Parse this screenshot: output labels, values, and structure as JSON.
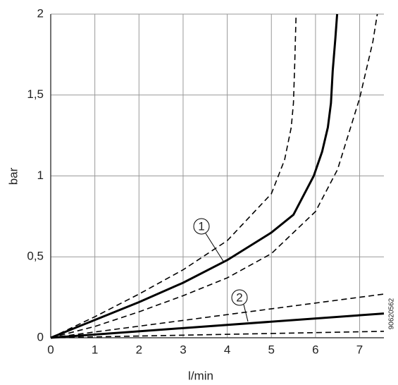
{
  "chart_data": {
    "type": "line",
    "xlabel": "l/min",
    "ylabel": "bar",
    "xlim": [
      0,
      7.55
    ],
    "ylim": [
      0,
      2
    ],
    "xticks": [
      0,
      1,
      2,
      3,
      4,
      5,
      6,
      7
    ],
    "yticks": [
      0,
      {
        "value": 0.5,
        "label": "0,5"
      },
      1,
      {
        "value": 1.5,
        "label": "1,5"
      },
      2
    ],
    "grid": true,
    "series": [
      {
        "color": "#000000",
        "style": "solid",
        "x": [
          0,
          1,
          2,
          3,
          4,
          5,
          5.5,
          5.96,
          6.15,
          6.28,
          6.35,
          6.39,
          6.45,
          6.49
        ],
        "values": [
          0,
          0.11,
          0.22,
          0.34,
          0.48,
          0.65,
          0.76,
          1.0,
          1.15,
          1.3,
          1.45,
          1.65,
          1.85,
          2
        ]
      },
      {
        "color": "#000000",
        "style": "dashed",
        "x": [
          0,
          1,
          2,
          3,
          4,
          5,
          5.3,
          5.45,
          5.5,
          5.53,
          5.56
        ],
        "values": [
          0,
          0.13,
          0.27,
          0.42,
          0.6,
          0.89,
          1.1,
          1.3,
          1.45,
          1.7,
          2
        ]
      },
      {
        "color": "#000000",
        "style": "dashed",
        "x": [
          0,
          1,
          2,
          3,
          4,
          5,
          6,
          6.5,
          7,
          7.3,
          7.4
        ],
        "values": [
          0,
          0.07,
          0.16,
          0.26,
          0.37,
          0.52,
          0.78,
          1.04,
          1.48,
          1.83,
          2
        ]
      },
      {
        "color": "#000000",
        "style": "solid",
        "x": [
          0,
          7.55
        ],
        "values": [
          0,
          0.15
        ]
      },
      {
        "color": "#000000",
        "style": "dashed",
        "x": [
          0,
          7.55
        ],
        "values": [
          0,
          0.27
        ]
      },
      {
        "color": "#000000",
        "style": "dashed",
        "x": [
          0,
          7.55
        ],
        "values": [
          0,
          0.04
        ]
      }
    ],
    "annotations": [
      "1",
      "2"
    ],
    "code": "90620562"
  }
}
